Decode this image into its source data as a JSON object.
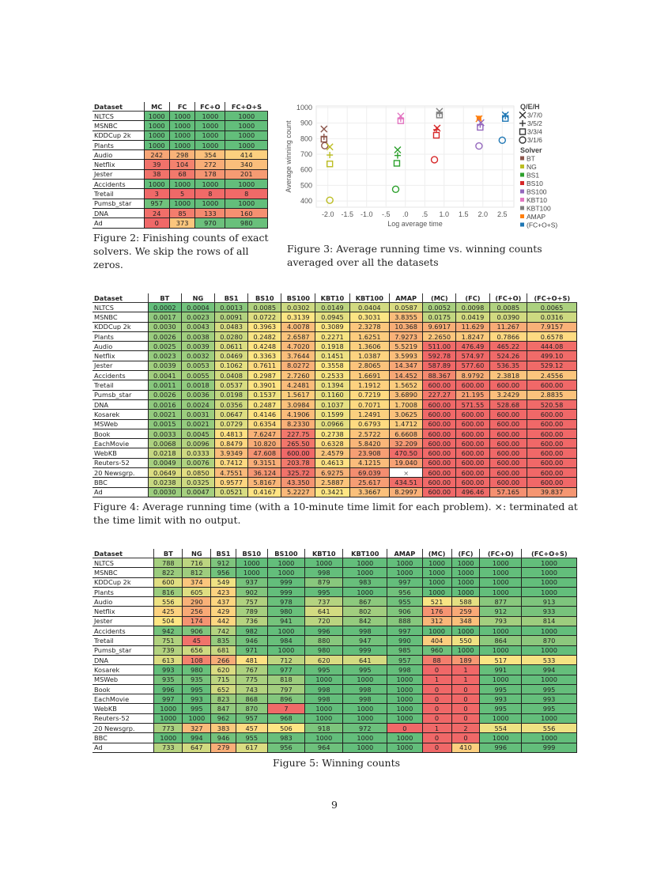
{
  "page_number": "9",
  "figure2": {
    "caption": "Figure 2: Finishing counts of exact solvers. We skip the rows of all zeros.",
    "headers": [
      "Dataset",
      "MC",
      "FC",
      "FC+O",
      "FC+O+S"
    ],
    "rows": [
      [
        "NLTCS",
        "1000",
        "1000",
        "1000",
        "1000"
      ],
      [
        "MSNBC",
        "1000",
        "1000",
        "1000",
        "1000"
      ],
      [
        "KDDCup 2k",
        "1000",
        "1000",
        "1000",
        "1000"
      ],
      [
        "Plants",
        "1000",
        "1000",
        "1000",
        "1000"
      ],
      [
        "Audio",
        "242",
        "298",
        "354",
        "414"
      ],
      [
        "Netflix",
        "39",
        "104",
        "272",
        "340"
      ],
      [
        "Jester",
        "38",
        "68",
        "178",
        "201"
      ],
      [
        "Accidents",
        "1000",
        "1000",
        "1000",
        "1000"
      ],
      [
        "Tretail",
        "3",
        "5",
        "8",
        "8"
      ],
      [
        "Pumsb_star",
        "957",
        "1000",
        "1000",
        "1000"
      ],
      [
        "DNA",
        "24",
        "85",
        "133",
        "160"
      ],
      [
        "Ad",
        "0",
        "373",
        "970",
        "980"
      ]
    ]
  },
  "figure3": {
    "caption": "Figure 3: Average running time vs. winning counts averaged over all the datasets"
  },
  "chart_data": {
    "type": "scatter",
    "title": "",
    "xlabel": "Log average time",
    "ylabel": "Average winning count",
    "xlim": [
      -2.3,
      2.8
    ],
    "ylim": [
      360,
      1010
    ],
    "xticks": [
      -2.0,
      -1.5,
      -1.0,
      -0.5,
      0.0,
      0.5,
      1.0,
      1.5,
      2.0,
      2.5
    ],
    "xtick_labels": [
      "-2.0",
      "-1.5",
      "-1.0",
      "-.5",
      ".0",
      ".5",
      "1.0",
      "1.5",
      "2.0",
      "2.5"
    ],
    "yticks": [
      400,
      500,
      600,
      700,
      800,
      900,
      1000
    ],
    "grid": true,
    "legend_position": "right",
    "marker_legend_title": "Q/E/H",
    "marker_legend": [
      {
        "marker": "x",
        "label": "3/7/0"
      },
      {
        "marker": "plus",
        "label": "3/5/2"
      },
      {
        "marker": "square",
        "label": "3/3/4"
      },
      {
        "marker": "circle",
        "label": "3/1/6"
      }
    ],
    "color_legend_title": "Solver",
    "solvers": [
      {
        "name": "BT",
        "color": "#8c564b"
      },
      {
        "name": "NG",
        "color": "#bcbd22"
      },
      {
        "name": "BS1",
        "color": "#2ca02c"
      },
      {
        "name": "BS10",
        "color": "#d62728"
      },
      {
        "name": "BS100",
        "color": "#9467bd"
      },
      {
        "name": "KBT10",
        "color": "#e377c2"
      },
      {
        "name": "KBT100",
        "color": "#7f7f7f"
      },
      {
        "name": "AMAP",
        "color": "#ff7f0e"
      },
      {
        "name": "(FC+O+S)",
        "color": "#1f77b4"
      }
    ],
    "points": [
      {
        "solver": "BT",
        "marker": "x",
        "x": -2.1,
        "y": 862
      },
      {
        "solver": "BT",
        "marker": "plus",
        "x": -2.1,
        "y": 812
      },
      {
        "solver": "BT",
        "marker": "square",
        "x": -2.1,
        "y": 797
      },
      {
        "solver": "BT",
        "marker": "circle",
        "x": -2.08,
        "y": 755
      },
      {
        "solver": "NG",
        "marker": "x",
        "x": -1.95,
        "y": 747
      },
      {
        "solver": "NG",
        "marker": "plus",
        "x": -1.95,
        "y": 695
      },
      {
        "solver": "NG",
        "marker": "square",
        "x": -1.95,
        "y": 638
      },
      {
        "solver": "NG",
        "marker": "circle",
        "x": -1.95,
        "y": 405
      },
      {
        "solver": "BS1",
        "marker": "x",
        "x": -0.2,
        "y": 728
      },
      {
        "solver": "BS1",
        "marker": "plus",
        "x": -0.2,
        "y": 692
      },
      {
        "solver": "BS1",
        "marker": "square",
        "x": -0.22,
        "y": 642
      },
      {
        "solver": "BS1",
        "marker": "circle",
        "x": -0.25,
        "y": 475
      },
      {
        "solver": "KBT10",
        "marker": "x",
        "x": -0.12,
        "y": 945
      },
      {
        "solver": "KBT10",
        "marker": "plus",
        "x": -0.12,
        "y": 928
      },
      {
        "solver": "KBT10",
        "marker": "square",
        "x": -0.12,
        "y": 915
      },
      {
        "solver": "BS10",
        "marker": "x",
        "x": 0.82,
        "y": 868
      },
      {
        "solver": "BS10",
        "marker": "plus",
        "x": 0.8,
        "y": 858
      },
      {
        "solver": "BS10",
        "marker": "square",
        "x": 0.8,
        "y": 822
      },
      {
        "solver": "BS10",
        "marker": "circle",
        "x": 0.75,
        "y": 665
      },
      {
        "solver": "KBT100",
        "marker": "x",
        "x": 0.88,
        "y": 975
      },
      {
        "solver": "KBT100",
        "marker": "plus",
        "x": 0.88,
        "y": 962
      },
      {
        "solver": "KBT100",
        "marker": "square",
        "x": 0.88,
        "y": 952
      },
      {
        "solver": "AMAP",
        "marker": "square",
        "x": 1.9,
        "y": 932
      },
      {
        "solver": "AMAP",
        "marker": "x",
        "x": 1.9,
        "y": 928
      },
      {
        "solver": "BS100",
        "marker": "x",
        "x": 1.95,
        "y": 903
      },
      {
        "solver": "BS100",
        "marker": "plus",
        "x": 1.93,
        "y": 890
      },
      {
        "solver": "BS100",
        "marker": "square",
        "x": 1.93,
        "y": 873
      },
      {
        "solver": "BS100",
        "marker": "circle",
        "x": 1.9,
        "y": 753
      },
      {
        "solver": "(FC+O+S)",
        "marker": "x",
        "x": 2.58,
        "y": 952
      },
      {
        "solver": "(FC+O+S)",
        "marker": "plus",
        "x": 2.58,
        "y": 945
      },
      {
        "solver": "(FC+O+S)",
        "marker": "square",
        "x": 2.58,
        "y": 930
      },
      {
        "solver": "(FC+O+S)",
        "marker": "circle",
        "x": 2.5,
        "y": 790
      }
    ]
  },
  "figure4": {
    "caption": "Figure 4: Average running time (with a 10-minute time limit for each problem). ×: terminated at the time limit with no output.",
    "headers": [
      "Dataset",
      "BT",
      "NG",
      "BS1",
      "BS10",
      "BS100",
      "KBT10",
      "KBT100",
      "AMAP",
      "(MC)",
      "(FC)",
      "(FC+O)",
      "(FC+O+S)"
    ],
    "rows": [
      [
        "NLTCS",
        "0.0002",
        "0.0004",
        "0.0013",
        "0.0085",
        "0.0302",
        "0.0149",
        "0.0404",
        "0.0587",
        "0.0052",
        "0.0098",
        "0.0085",
        "0.0065"
      ],
      [
        "MSNBC",
        "0.0017",
        "0.0023",
        "0.0091",
        "0.0722",
        "0.3139",
        "0.0945",
        "0.3031",
        "3.8355",
        "0.0175",
        "0.0419",
        "0.0390",
        "0.0316"
      ],
      [
        "KDDCup 2k",
        "0.0030",
        "0.0043",
        "0.0483",
        "0.3963",
        "4.0078",
        "0.3089",
        "2.3278",
        "10.368",
        "9.6917",
        "11.629",
        "11.267",
        "7.9157"
      ],
      [
        "Plants",
        "0.0026",
        "0.0038",
        "0.0280",
        "0.2482",
        "2.6587",
        "0.2271",
        "1.6251",
        "7.9273",
        "2.2650",
        "1.8247",
        "0.7866",
        "0.6578"
      ],
      [
        "Audio",
        "0.0025",
        "0.0039",
        "0.0611",
        "0.4248",
        "4.7020",
        "0.1918",
        "1.3606",
        "5.5219",
        "511.00",
        "476.49",
        "465.22",
        "444.08"
      ],
      [
        "Netflix",
        "0.0023",
        "0.0032",
        "0.0469",
        "0.3363",
        "3.7644",
        "0.1451",
        "1.0387",
        "3.5993",
        "592.78",
        "574.97",
        "524.26",
        "499.10"
      ],
      [
        "Jester",
        "0.0039",
        "0.0053",
        "0.1062",
        "0.7611",
        "8.0272",
        "0.3558",
        "2.8065",
        "14.347",
        "587.89",
        "577.60",
        "536.35",
        "529.12"
      ],
      [
        "Accidents",
        "0.0041",
        "0.0055",
        "0.0408",
        "0.2987",
        "2.7260",
        "0.2533",
        "1.6691",
        "14.452",
        "88.367",
        "8.9792",
        "2.3818",
        "2.4556"
      ],
      [
        "Tretail",
        "0.0011",
        "0.0018",
        "0.0537",
        "0.3901",
        "4.2481",
        "0.1394",
        "1.1912",
        "1.5652",
        "600.00",
        "600.00",
        "600.00",
        "600.00"
      ],
      [
        "Pumsb_star",
        "0.0026",
        "0.0036",
        "0.0198",
        "0.1537",
        "1.5617",
        "0.1160",
        "0.7219",
        "3.6890",
        "227.27",
        "21.195",
        "3.2429",
        "2.8835"
      ],
      [
        "DNA",
        "0.0016",
        "0.0024",
        "0.0356",
        "0.2487",
        "3.0984",
        "0.1037",
        "0.7071",
        "1.7008",
        "600.00",
        "571.55",
        "528.68",
        "520.58"
      ],
      [
        "Kosarek",
        "0.0021",
        "0.0031",
        "0.0647",
        "0.4146",
        "4.1906",
        "0.1599",
        "1.2491",
        "3.0625",
        "600.00",
        "600.00",
        "600.00",
        "600.00"
      ],
      [
        "MSWeb",
        "0.0015",
        "0.0021",
        "0.0729",
        "0.6354",
        "8.2330",
        "0.0966",
        "0.6793",
        "1.4712",
        "600.00",
        "600.00",
        "600.00",
        "600.00"
      ],
      [
        "Book",
        "0.0033",
        "0.0045",
        "0.4813",
        "7.6247",
        "227.75",
        "0.2738",
        "2.5722",
        "6.6608",
        "600.00",
        "600.00",
        "600.00",
        "600.00"
      ],
      [
        "EachMovie",
        "0.0068",
        "0.0096",
        "0.8479",
        "10.820",
        "265.50",
        "0.6328",
        "5.8420",
        "32.209",
        "600.00",
        "600.00",
        "600.00",
        "600.00"
      ],
      [
        "WebKB",
        "0.0218",
        "0.0333",
        "3.9349",
        "47.608",
        "600.00",
        "2.4579",
        "23.908",
        "470.50",
        "600.00",
        "600.00",
        "600.00",
        "600.00"
      ],
      [
        "Reuters-52",
        "0.0049",
        "0.0076",
        "0.7412",
        "9.3151",
        "203.78",
        "0.4613",
        "4.1215",
        "19.040",
        "600.00",
        "600.00",
        "600.00",
        "600.00"
      ],
      [
        "20 Newsgrp.",
        "0.0649",
        "0.0850",
        "4.7551",
        "36.124",
        "325.72",
        "6.9275",
        "69.039",
        "×",
        "600.00",
        "600.00",
        "600.00",
        "600.00"
      ],
      [
        "BBC",
        "0.0238",
        "0.0325",
        "0.9577",
        "5.8167",
        "43.350",
        "2.5887",
        "25.617",
        "434.51",
        "600.00",
        "600.00",
        "600.00",
        "600.00"
      ],
      [
        "Ad",
        "0.0030",
        "0.0047",
        "0.0521",
        "0.4167",
        "5.2227",
        "0.3421",
        "3.3667",
        "8.2997",
        "600.00",
        "496.46",
        "57.165",
        "39.837"
      ]
    ]
  },
  "figure5": {
    "caption": "Figure 5: Winning counts",
    "headers": [
      "Dataset",
      "BT",
      "NG",
      "BS1",
      "BS10",
      "BS100",
      "KBT10",
      "KBT100",
      "AMAP",
      "(MC)",
      "(FC)",
      "(FC+O)",
      "(FC+O+S)"
    ],
    "rows": [
      [
        "NLTCS",
        "788",
        "716",
        "912",
        "1000",
        "1000",
        "1000",
        "1000",
        "1000",
        "1000",
        "1000",
        "1000",
        "1000"
      ],
      [
        "MSNBC",
        "822",
        "812",
        "956",
        "1000",
        "1000",
        "998",
        "1000",
        "1000",
        "1000",
        "1000",
        "1000",
        "1000"
      ],
      [
        "KDDCup 2k",
        "600",
        "374",
        "549",
        "937",
        "999",
        "879",
        "983",
        "997",
        "1000",
        "1000",
        "1000",
        "1000"
      ],
      [
        "Plants",
        "816",
        "605",
        "423",
        "902",
        "999",
        "995",
        "1000",
        "956",
        "1000",
        "1000",
        "1000",
        "1000"
      ],
      [
        "Audio",
        "556",
        "290",
        "437",
        "757",
        "978",
        "737",
        "867",
        "955",
        "521",
        "588",
        "877",
        "913"
      ],
      [
        "Netflix",
        "425",
        "256",
        "429",
        "789",
        "980",
        "641",
        "802",
        "906",
        "176",
        "259",
        "912",
        "933"
      ],
      [
        "Jester",
        "504",
        "174",
        "442",
        "736",
        "941",
        "720",
        "842",
        "888",
        "312",
        "348",
        "793",
        "814"
      ],
      [
        "Accidents",
        "942",
        "906",
        "742",
        "982",
        "1000",
        "996",
        "998",
        "997",
        "1000",
        "1000",
        "1000",
        "1000"
      ],
      [
        "Tretail",
        "751",
        "45",
        "835",
        "946",
        "984",
        "880",
        "947",
        "990",
        "404",
        "550",
        "864",
        "870"
      ],
      [
        "Pumsb_star",
        "739",
        "656",
        "681",
        "971",
        "1000",
        "980",
        "999",
        "985",
        "960",
        "1000",
        "1000",
        "1000"
      ],
      [
        "DNA",
        "613",
        "108",
        "266",
        "481",
        "712",
        "620",
        "641",
        "957",
        "88",
        "189",
        "517",
        "533"
      ],
      [
        "Kosarek",
        "993",
        "980",
        "620",
        "767",
        "977",
        "995",
        "995",
        "998",
        "0",
        "1",
        "991",
        "994"
      ],
      [
        "MSWeb",
        "935",
        "935",
        "715",
        "775",
        "818",
        "1000",
        "1000",
        "1000",
        "1",
        "1",
        "1000",
        "1000"
      ],
      [
        "Book",
        "996",
        "995",
        "652",
        "743",
        "797",
        "998",
        "998",
        "1000",
        "0",
        "0",
        "995",
        "995"
      ],
      [
        "EachMovie",
        "997",
        "993",
        "823",
        "868",
        "896",
        "998",
        "998",
        "1000",
        "0",
        "0",
        "993",
        "993"
      ],
      [
        "WebKB",
        "1000",
        "995",
        "847",
        "870",
        "7",
        "1000",
        "1000",
        "1000",
        "0",
        "0",
        "995",
        "995"
      ],
      [
        "Reuters-52",
        "1000",
        "1000",
        "962",
        "957",
        "968",
        "1000",
        "1000",
        "1000",
        "0",
        "0",
        "1000",
        "1000"
      ],
      [
        "20 Newsgrp.",
        "773",
        "327",
        "383",
        "457",
        "506",
        "918",
        "972",
        "0",
        "1",
        "2",
        "554",
        "556"
      ],
      [
        "BBC",
        "1000",
        "994",
        "946",
        "955",
        "983",
        "1000",
        "1000",
        "1000",
        "0",
        "0",
        "1000",
        "1000"
      ],
      [
        "Ad",
        "733",
        "647",
        "279",
        "617",
        "956",
        "964",
        "1000",
        "1000",
        "0",
        "410",
        "996",
        "999"
      ]
    ]
  }
}
